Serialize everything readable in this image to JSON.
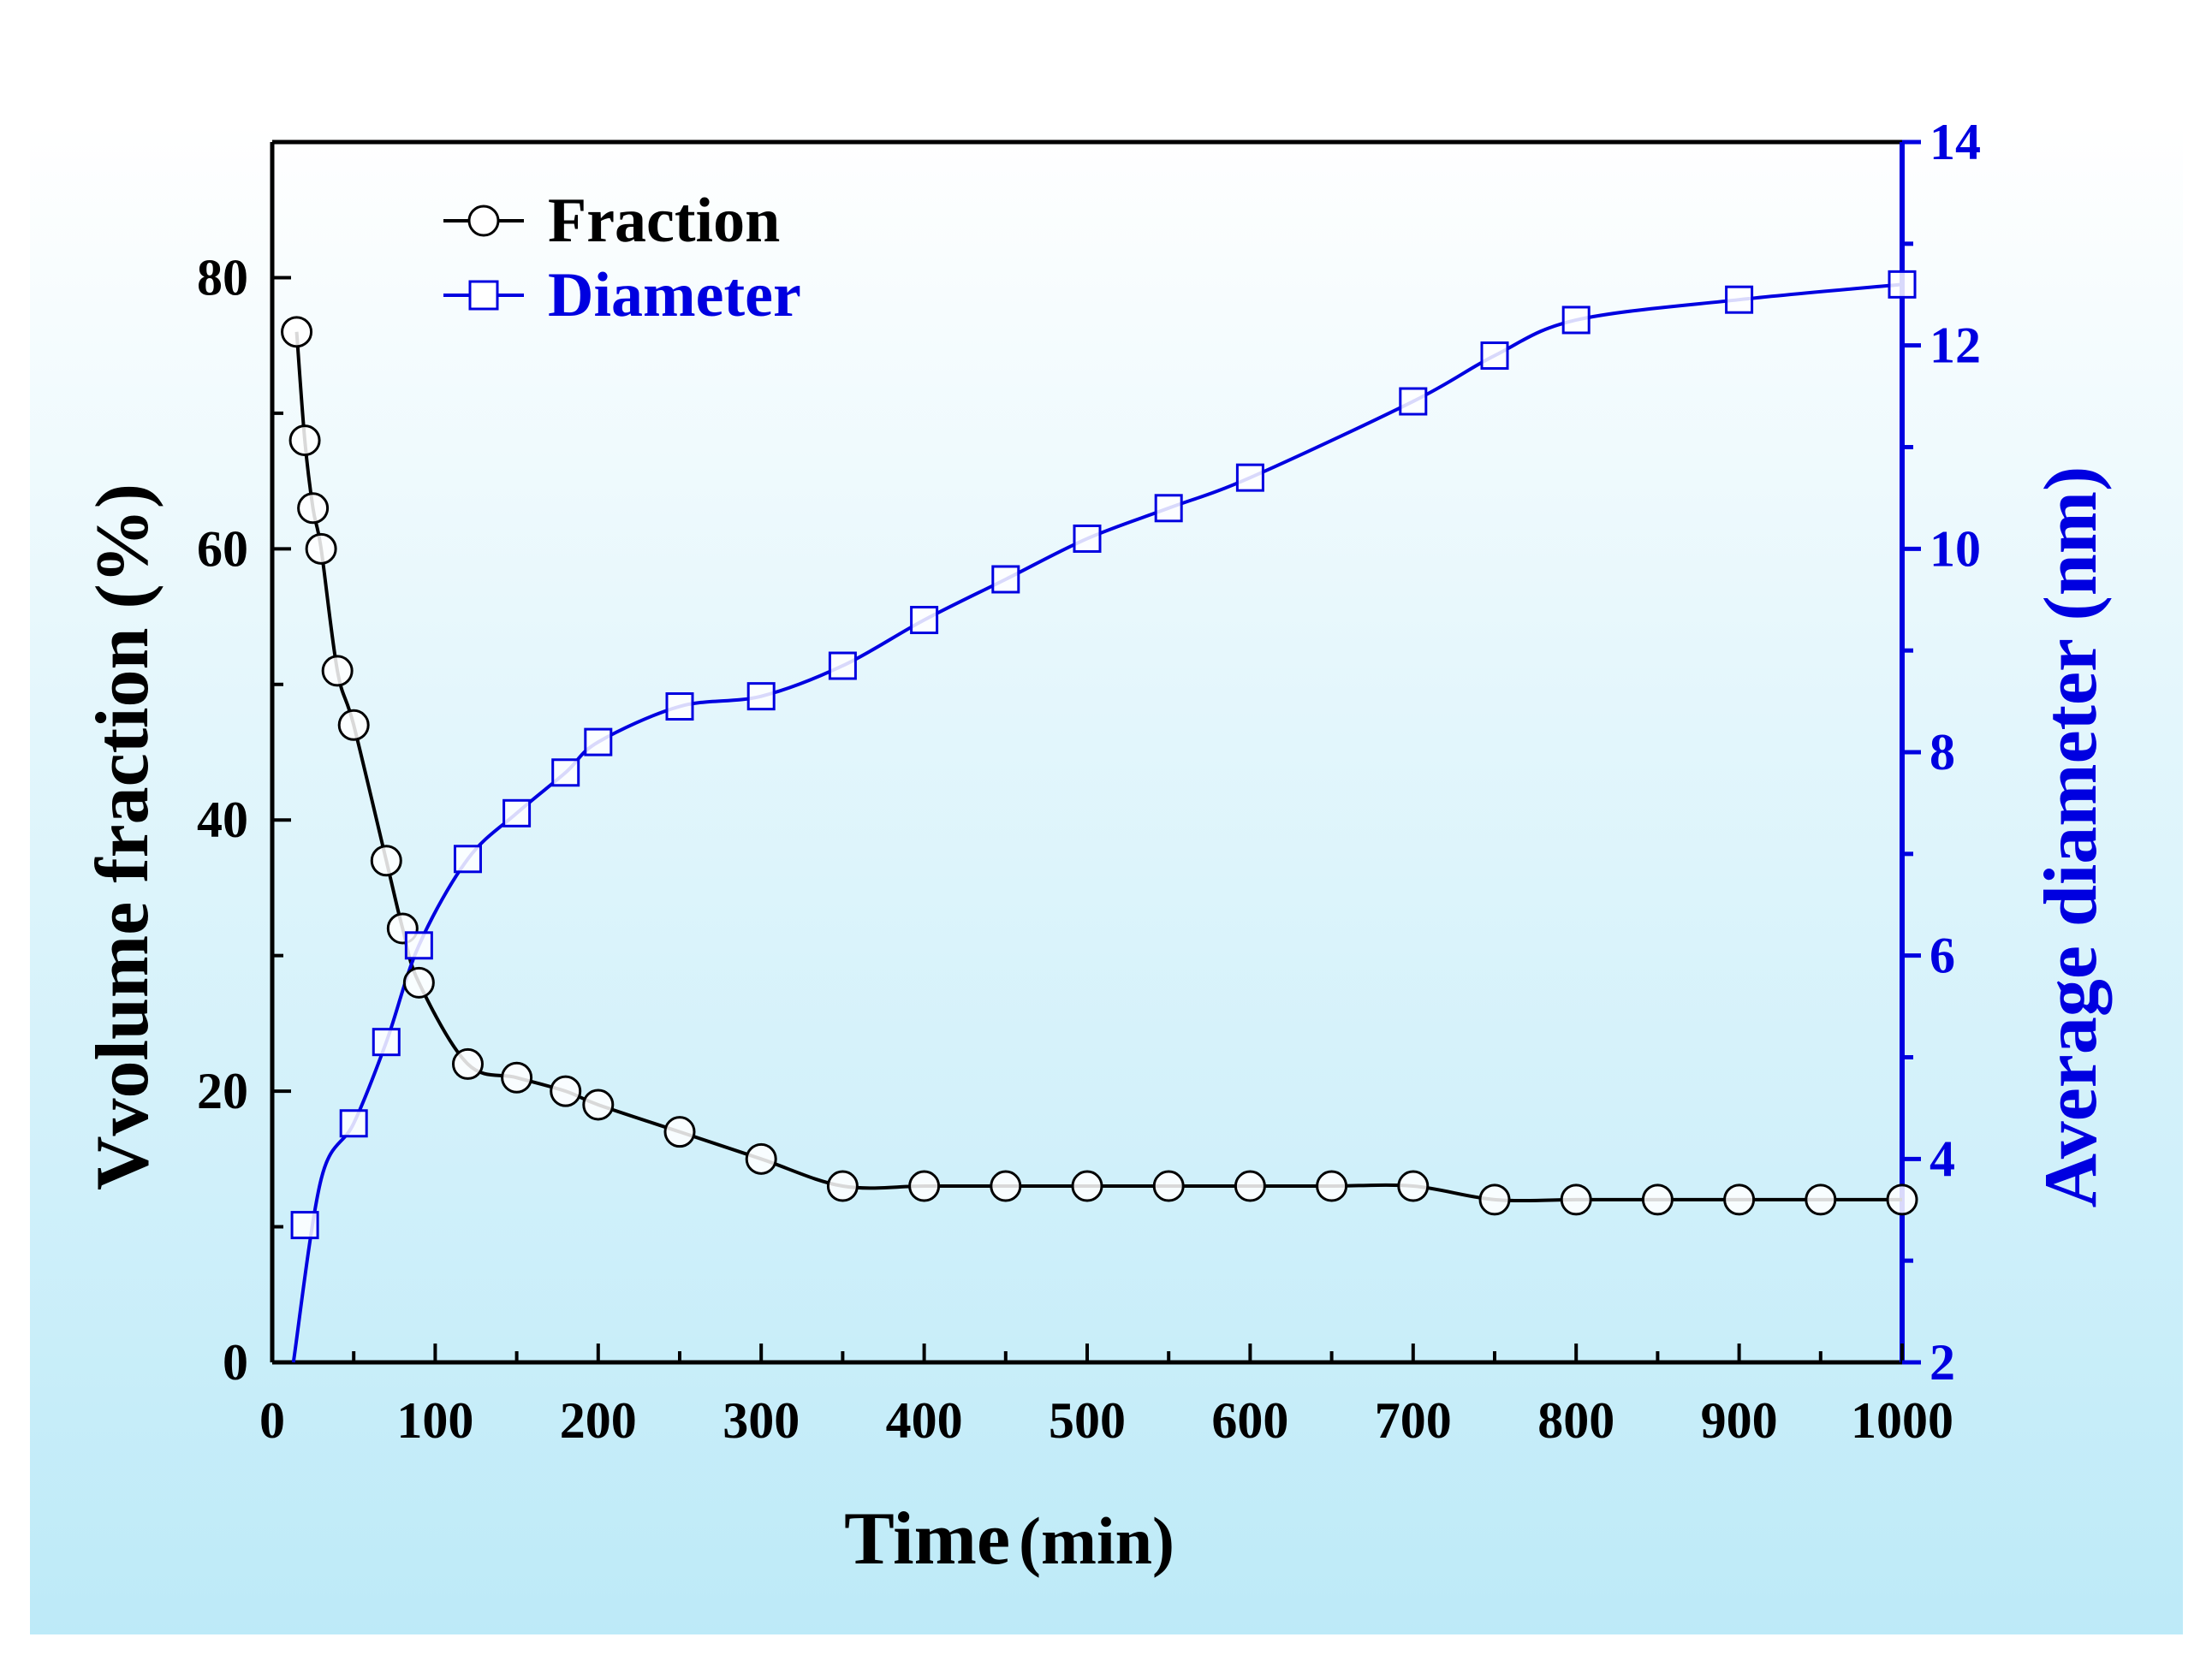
{
  "chart_data": {
    "type": "line",
    "xlabel": "Time",
    "xlabel_unit": "(min)",
    "ylabel_left": "Vvolume fraction (%)",
    "ylabel_right": "Average diameter (nm)",
    "xlim": [
      0,
      1000
    ],
    "ylim_left": [
      0,
      90
    ],
    "ylim_right": [
      2,
      14
    ],
    "x_ticks": [
      "0",
      "100",
      "200",
      "300",
      "400",
      "500",
      "600",
      "700",
      "800",
      "900",
      "1000"
    ],
    "y_left_ticks": [
      "0",
      "20",
      "40",
      "60",
      "80"
    ],
    "y_right_ticks": [
      "2",
      "4",
      "6",
      "8",
      "10",
      "12",
      "14"
    ],
    "legend_position": "top-left",
    "colors": {
      "fraction": "#000000",
      "diameter": "#0000e0",
      "background_top": "#ffffff",
      "background_bottom": "#bdeaf8"
    },
    "series": [
      {
        "name": "Fraction",
        "axis": "left",
        "marker": "circle",
        "x": [
          15,
          20,
          25,
          30,
          40,
          50,
          70,
          80,
          90,
          120,
          150,
          180,
          200,
          250,
          300,
          350,
          400,
          450,
          500,
          550,
          600,
          650,
          700,
          750,
          800,
          850,
          900,
          950,
          1000
        ],
        "values": [
          76,
          68,
          63,
          60,
          51,
          47,
          37,
          32,
          28,
          22,
          21,
          20,
          19,
          17,
          15,
          13,
          13,
          13,
          13,
          13,
          13,
          13,
          13,
          12,
          12,
          12,
          12,
          12,
          12
        ]
      },
      {
        "name": "Diameter",
        "axis": "right",
        "marker": "square",
        "x": [
          20,
          50,
          70,
          90,
          120,
          150,
          180,
          200,
          250,
          300,
          350,
          400,
          450,
          500,
          550,
          600,
          700,
          750,
          800,
          900,
          1000
        ],
        "values": [
          3.35,
          4.35,
          5.15,
          6.1,
          6.95,
          7.4,
          7.8,
          8.1,
          8.45,
          8.55,
          8.85,
          9.3,
          9.7,
          10.1,
          10.4,
          10.7,
          11.45,
          11.9,
          12.25,
          12.45,
          12.6
        ]
      }
    ]
  }
}
